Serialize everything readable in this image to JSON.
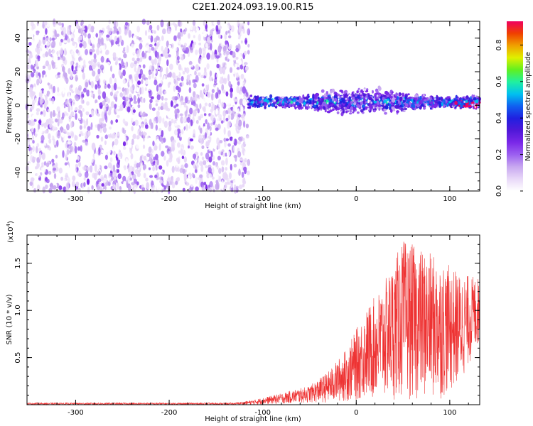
{
  "title": "C2E1.2024.093.19.00.R15",
  "colors": {
    "snr_line": "#ee3333",
    "spectrum_cmap": [
      "#ffffff",
      "#e8d8f8",
      "#c8a8f0",
      "#9c60f0",
      "#7a28e8",
      "#5018d8",
      "#2020e0",
      "#1060f0",
      "#00c0f0",
      "#20f0a0",
      "#60f020",
      "#e0f000",
      "#f0a000",
      "#f04000",
      "#f00060"
    ]
  },
  "chart_data": [
    {
      "type": "heatmap",
      "xlabel": "Height of straight line (km)",
      "ylabel": "Frequency (Hz)",
      "xlim": [
        -352,
        132
      ],
      "ylim": [
        -51,
        50
      ],
      "x_ticks": [
        -300,
        -200,
        -100,
        0,
        100
      ],
      "x_tick_labels": [
        "-300",
        "-200",
        "-100",
        "0",
        "100"
      ],
      "y_ticks": [
        -40,
        -20,
        0,
        20,
        40
      ],
      "y_tick_labels": [
        "-40",
        "-20",
        "0",
        "20",
        "40"
      ],
      "colorbar": {
        "label": "Normalized spectral amplitude",
        "range": [
          0,
          0.93
        ],
        "ticks": [
          0.0,
          0.2,
          0.4,
          0.6,
          0.8
        ],
        "tick_labels": [
          "0.0",
          "0.2",
          "0.4",
          "0.6",
          "0.8"
        ]
      },
      "regions": [
        {
          "x_range": [
            -352,
            -115
          ],
          "y_range": [
            -51,
            50
          ],
          "amplitude": [
            0.02,
            0.25
          ]
        },
        {
          "x_range": [
            -115,
            132
          ],
          "y_range": [
            -10,
            10
          ],
          "amplitude": [
            0.15,
            0.6
          ]
        }
      ],
      "band_center_hz": 2,
      "band_peak": {
        "x": 120,
        "y": 0,
        "amplitude": 0.9
      }
    },
    {
      "type": "line",
      "xlabel": "Height of straight line (km)",
      "ylabel": "SNR (10 * v/v)",
      "y_scale_label": "(x10",
      "y_scale_exponent": "4",
      "y_scale_close": ")",
      "xlim": [
        -352,
        132
      ],
      "ylim": [
        0,
        1.8
      ],
      "x_ticks": [
        -300,
        -200,
        -100,
        0,
        100
      ],
      "x_tick_labels": [
        "-300",
        "-200",
        "-100",
        "0",
        "100"
      ],
      "y_ticks": [
        0.5,
        1.0,
        1.5
      ],
      "y_tick_labels": [
        "0.5",
        "1.0",
        "1.5"
      ],
      "envelope": [
        {
          "x": -352,
          "lo": 0.0,
          "hi": 0.02
        },
        {
          "x": -130,
          "lo": 0.0,
          "hi": 0.02
        },
        {
          "x": -110,
          "lo": 0.0,
          "hi": 0.05
        },
        {
          "x": -80,
          "lo": 0.01,
          "hi": 0.12
        },
        {
          "x": -50,
          "lo": 0.02,
          "hi": 0.2
        },
        {
          "x": -30,
          "lo": 0.02,
          "hi": 0.35
        },
        {
          "x": -10,
          "lo": 0.03,
          "hi": 0.6
        },
        {
          "x": 10,
          "lo": 0.05,
          "hi": 1.0
        },
        {
          "x": 30,
          "lo": 0.05,
          "hi": 1.3
        },
        {
          "x": 50,
          "lo": 0.05,
          "hi": 1.75
        },
        {
          "x": 70,
          "lo": 0.05,
          "hi": 1.65
        },
        {
          "x": 90,
          "lo": 0.05,
          "hi": 1.55
        },
        {
          "x": 110,
          "lo": 0.2,
          "hi": 1.4
        },
        {
          "x": 132,
          "lo": 0.65,
          "hi": 1.35
        }
      ]
    }
  ]
}
